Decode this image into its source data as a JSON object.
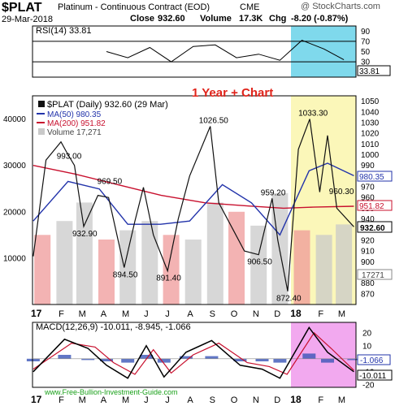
{
  "header": {
    "symbol": "$PLAT",
    "name": "Platinum - Continuous Contract (EOD)",
    "exchange": "CME",
    "watermark": "@ StockCharts.com",
    "date": "29-Mar-2018",
    "close_label": "Close",
    "close": "932.60",
    "volume_label": "Volume",
    "volume": "17.3K",
    "chg_label": "Chg",
    "chg": "-8.20 (-0.87%)"
  },
  "overlay": {
    "title": "1 Year + Chart",
    "footer": "www.Free-Bullion-Investment-Guide.com"
  },
  "colors": {
    "price": "#111111",
    "ma50": "#2233aa",
    "ma200": "#c8102e",
    "overlay_title": "#e0241b",
    "footer": "#1aa11a",
    "rsi_highlight": "#7fd9ec",
    "price_highlight": "#fbf7b9",
    "macd_highlight": "#f2a9ef",
    "volume_bar": "#c9c9c9",
    "volume_up": "#ef9a9a"
  },
  "chart_data": [
    {
      "type": "line",
      "panel": "RSI",
      "legend": "RSI(14) 33.81",
      "ylim": [
        0,
        100
      ],
      "ticks": [
        10,
        30,
        50,
        70,
        90
      ],
      "levels": [
        30,
        70
      ],
      "current_label": "33.81",
      "x": [
        "2017-04",
        "2017-05",
        "2017-06",
        "2017-07",
        "2017-08",
        "2017-09",
        "2017-10",
        "2017-11",
        "2017-12",
        "2018-01",
        "2018-02",
        "2018-03"
      ],
      "values": [
        50,
        38,
        58,
        30,
        60,
        63,
        38,
        45,
        33,
        72,
        55,
        34
      ]
    },
    {
      "type": "line",
      "panel": "Price",
      "legend": "$PLAT (Daily) 932.60 (29 Mar)",
      "ylim": [
        860,
        1055
      ],
      "ticks": [
        870,
        880,
        890,
        900,
        910,
        920,
        930,
        940,
        950,
        960,
        970,
        980,
        990,
        1000,
        1010,
        1020,
        1030,
        1040,
        1050
      ],
      "x_ticks": [
        "17",
        "F",
        "M",
        "A",
        "M",
        "J",
        "J",
        "A",
        "S",
        "O",
        "N",
        "D",
        "18",
        "F",
        "M"
      ],
      "series": [
        {
          "name": "$PLAT (Daily)",
          "x": [
            "2017-01-02",
            "2017-01-20",
            "2017-02-10",
            "2017-02-20",
            "2017-03-01",
            "2017-03-14",
            "2017-04-03",
            "2017-04-18",
            "2017-05-10",
            "2017-05-25",
            "2017-06-06",
            "2017-06-20",
            "2017-07-10",
            "2017-07-25",
            "2017-08-10",
            "2017-09-08",
            "2017-09-20",
            "2017-10-10",
            "2017-10-26",
            "2017-11-15",
            "2017-12-04",
            "2017-12-12",
            "2017-12-26",
            "2018-01-10",
            "2018-01-26",
            "2018-02-09",
            "2018-02-20",
            "2018-03-05",
            "2018-03-29"
          ],
          "values": [
            905,
            995,
            1012,
            1000,
            990,
            932.9,
            962,
            960,
            894.5,
            938,
            969.5,
            925,
            891.4,
            940,
            980,
            1026.5,
            955,
            930,
            910,
            906.5,
            959.2,
            920,
            872.4,
            1005,
            1033.3,
            965,
            1018,
            950,
            932.6
          ]
        },
        {
          "name": "MA(50) 980.35",
          "x": [
            "2017-01-02",
            "2017-02-20",
            "2017-04-05",
            "2017-05-15",
            "2017-06-30",
            "2017-08-10",
            "2017-09-25",
            "2017-11-05",
            "2017-12-15",
            "2018-01-25",
            "2018-02-20",
            "2018-03-29"
          ],
          "values": [
            938,
            975,
            968,
            935,
            935,
            938,
            972,
            955,
            925,
            985,
            992,
            980.35
          ]
        },
        {
          "name": "MA(200) 951.82",
          "x": [
            "2017-01-02",
            "2017-03-01",
            "2017-05-01",
            "2017-07-01",
            "2017-09-01",
            "2017-11-01",
            "2017-12-20",
            "2018-01-31",
            "2018-03-29"
          ],
          "values": [
            990,
            982,
            972,
            962,
            955,
            952,
            950,
            951,
            951.82
          ]
        }
      ],
      "annotations": [
        "993.00",
        "969.50",
        "932.90",
        "894.50",
        "891.40",
        "1026.50",
        "906.50",
        "959.20",
        "872.40",
        "1033.30",
        "960.30"
      ],
      "current_labels": [
        "980.35",
        "951.82",
        "932.60"
      ]
    },
    {
      "type": "bar",
      "panel": "Volume",
      "legend": "Volume 17,271",
      "ylim": [
        0,
        45000
      ],
      "ticks": [
        10000,
        20000,
        30000,
        40000
      ],
      "current_label": "17271",
      "x": [
        "2017-01",
        "2017-02",
        "2017-03",
        "2017-04",
        "2017-05",
        "2017-06",
        "2017-07",
        "2017-08",
        "2017-09",
        "2017-10",
        "2017-11",
        "2017-12",
        "2018-01",
        "2018-02",
        "2018-03"
      ],
      "values": [
        15000,
        18000,
        22000,
        14000,
        16000,
        18000,
        15000,
        14000,
        22000,
        20000,
        17000,
        24000,
        16000,
        15000,
        17271
      ]
    },
    {
      "type": "line",
      "panel": "MACD",
      "legend": "MACD(12,26,9) -10.011, -8.945, -1.066",
      "ylim": [
        -22,
        28
      ],
      "ticks": [
        -20,
        -10,
        0,
        10,
        20
      ],
      "current_labels": [
        "-1.066",
        "-10.011"
      ],
      "series": [
        {
          "name": "MACD(12,26,9)",
          "x": [
            "2017-01-02",
            "2017-02-15",
            "2017-03-20",
            "2017-04-15",
            "2017-05-15",
            "2017-06-10",
            "2017-07-05",
            "2017-08-05",
            "2017-09-10",
            "2017-10-20",
            "2017-11-20",
            "2017-12-15",
            "2018-01-25",
            "2018-02-20",
            "2018-03-29"
          ],
          "values": [
            -10,
            15,
            8,
            -5,
            -15,
            10,
            -14,
            5,
            14,
            -5,
            -8,
            -15,
            24,
            5,
            -10.011
          ]
        },
        {
          "name": "Signal",
          "x": [
            "2017-01-02",
            "2017-02-25",
            "2017-03-30",
            "2017-04-25",
            "2017-05-25",
            "2017-06-20",
            "2017-07-15",
            "2017-08-15",
            "2017-09-20",
            "2017-10-30",
            "2017-11-30",
            "2017-12-25",
            "2018-02-01",
            "2018-02-25",
            "2018-03-29"
          ],
          "values": [
            -8,
            12,
            9,
            -3,
            -12,
            7,
            -11,
            3,
            12,
            -3,
            -6,
            -12,
            20,
            8,
            -8.945
          ]
        },
        {
          "name": "Histogram",
          "x": [
            "2017-01-02",
            "2017-02-15",
            "2017-03-20",
            "2017-04-15",
            "2017-05-15",
            "2017-06-10",
            "2017-07-05",
            "2017-08-05",
            "2017-09-10",
            "2017-10-20",
            "2017-11-20",
            "2017-12-15",
            "2018-01-25",
            "2018-02-20",
            "2018-03-29"
          ],
          "values": [
            -2,
            3,
            -1,
            -2,
            -3,
            3,
            -3,
            2,
            2,
            -2,
            -2,
            -3,
            4,
            -3,
            -1.066
          ]
        }
      ],
      "x_ticks": [
        "17",
        "F",
        "M",
        "A",
        "M",
        "J",
        "J",
        "A",
        "S",
        "O",
        "N",
        "D",
        "18",
        "F",
        "M"
      ]
    }
  ]
}
